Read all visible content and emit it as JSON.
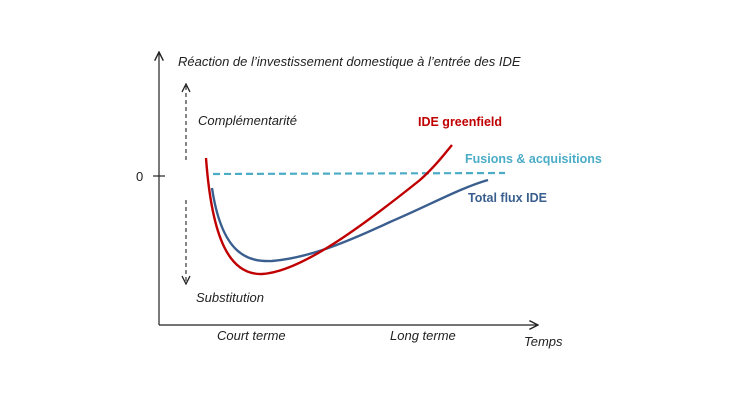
{
  "title": "Réaction de l’investissement domestique à l’entrée des IDE",
  "zero_label": "0",
  "top_label": "Complémentarité",
  "bottom_label": "Substitution",
  "x_axis_label": "Temps",
  "x_ticks": [
    "Court terme",
    "Long terme"
  ],
  "series": [
    {
      "name": "IDE greenfield",
      "color": "#c00000"
    },
    {
      "name": "Fusions & acquisitions",
      "color": "#4bacc6"
    },
    {
      "name": "Total flux IDE",
      "color": "#3a5f8f"
    }
  ]
}
